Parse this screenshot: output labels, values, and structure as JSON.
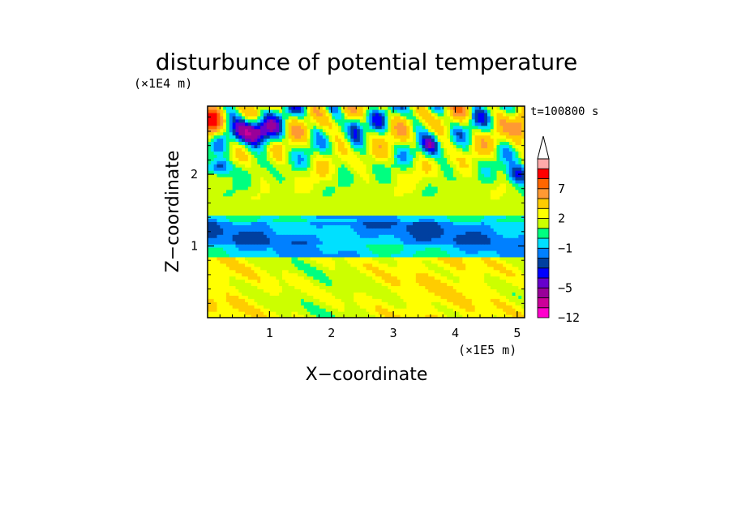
{
  "chart_data": {
    "type": "heatmap",
    "title": "disturbunce of potential temperature",
    "time_label": "t=100800 s",
    "xlabel": "X−coordinate",
    "ylabel": "Z−coordinate",
    "x_unit": "(×1E5 m)",
    "y_unit": "(×1E4 m)",
    "xlim": [
      0,
      5.12
    ],
    "ylim": [
      0,
      2.95
    ],
    "x_ticks": [
      {
        "value": 1,
        "label": "1"
      },
      {
        "value": 2,
        "label": "2"
      },
      {
        "value": 3,
        "label": "3"
      },
      {
        "value": 4,
        "label": "4"
      },
      {
        "value": 5,
        "label": "5"
      }
    ],
    "y_ticks": [
      {
        "value": 1,
        "label": "1"
      },
      {
        "value": 2,
        "label": "2"
      }
    ],
    "colorbar": {
      "levels": [
        -12,
        -10,
        -7,
        -5,
        -4,
        -3,
        -2,
        -1,
        0,
        1,
        2,
        3,
        5,
        7,
        9,
        12
      ],
      "colors": [
        "#ff00cc",
        "#cc0099",
        "#990099",
        "#6600cc",
        "#0000ff",
        "#0040a0",
        "#0080ff",
        "#00e0ff",
        "#00ff80",
        "#ccff00",
        "#ffff00",
        "#ffcc00",
        "#ff9933",
        "#ff6600",
        "#ff0000",
        "#ffaaaa"
      ],
      "labeled": [
        {
          "value": 7,
          "label": "7"
        },
        {
          "value": 2,
          "label": "2"
        },
        {
          "value": -1,
          "label": "−1"
        },
        {
          "value": -5,
          "label": "−5"
        },
        {
          "value": -12,
          "label": "−12"
        }
      ],
      "extend": "max"
    }
  }
}
